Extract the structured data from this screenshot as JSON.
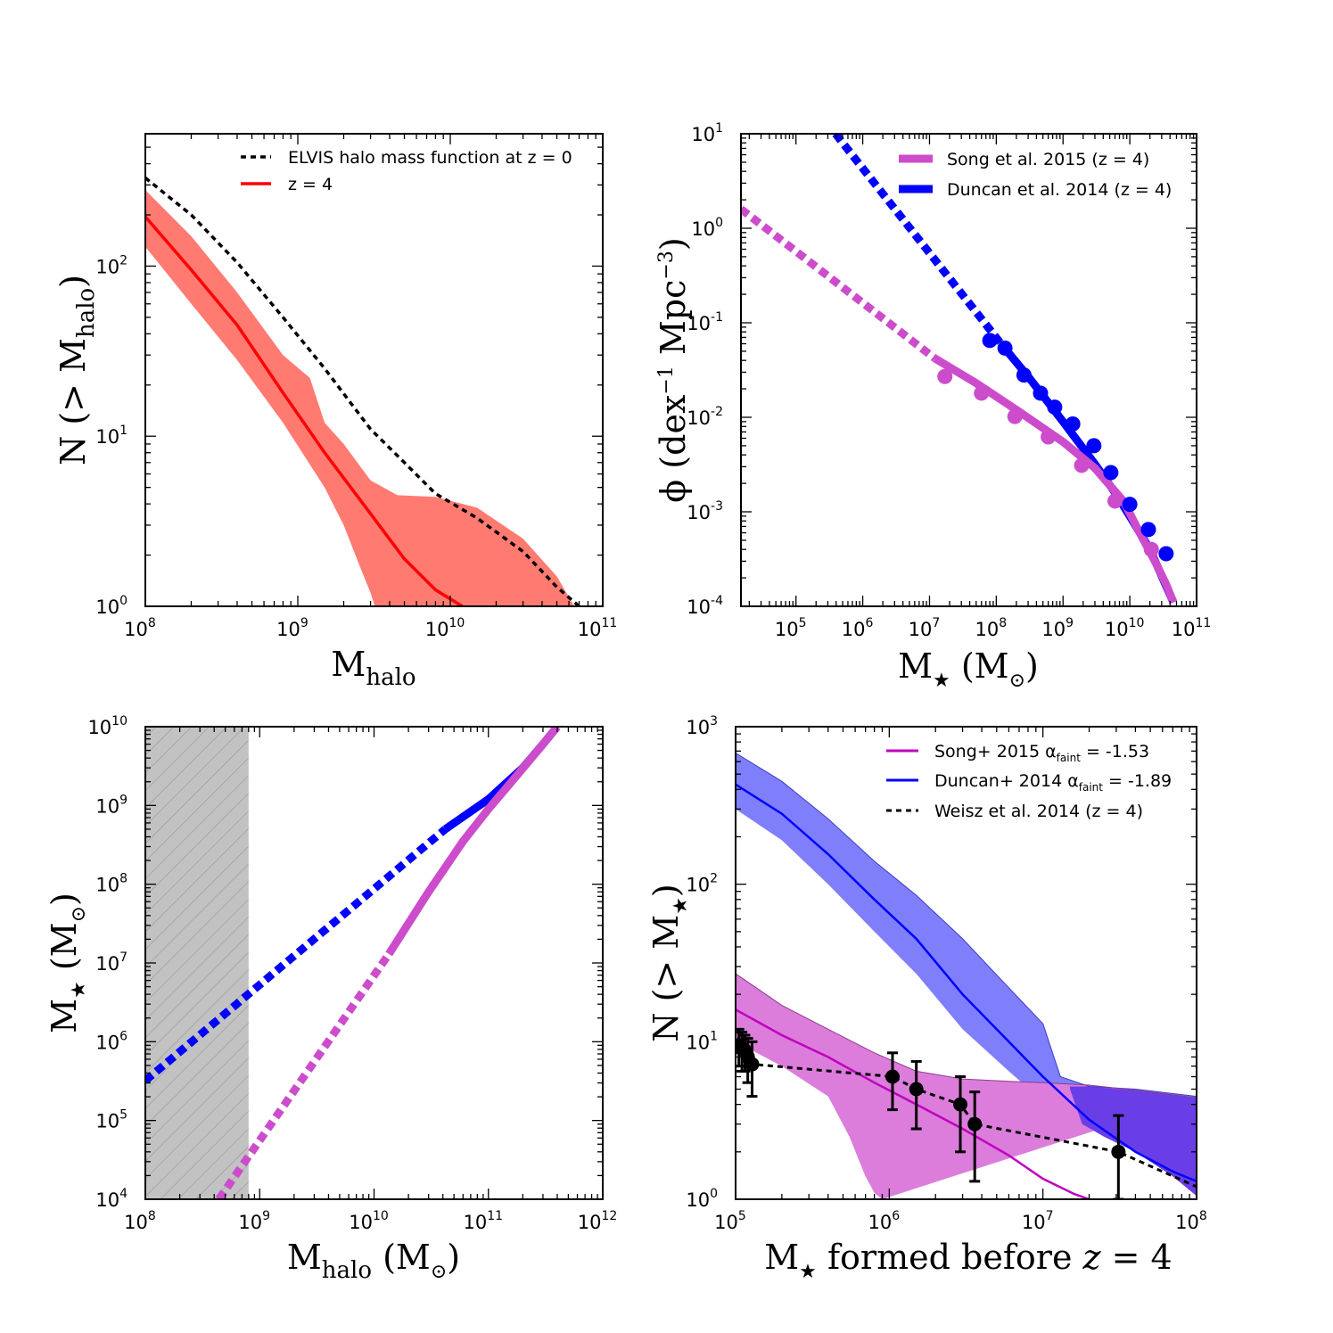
{
  "colors": {
    "red_line": "#ff0000",
    "red_fill": "#ff7b72",
    "magenta_line": "#bf00bf",
    "magenta_thick": "#cc4ccc",
    "magenta_fill": "#dc7ddc",
    "blue_line": "#0000ff",
    "blue_fill": "#7f7ffb",
    "overlap_fill": "#6a3ee6",
    "hatch_fill": "#c2c2c2",
    "black": "#000000"
  },
  "chart_data": [
    {
      "id": "a",
      "type": "line",
      "xscale": "log",
      "yscale": "log",
      "xlim": [
        100000000.0,
        100000000000.0
      ],
      "ylim": [
        1,
        600
      ],
      "xlabel": "M",
      "xlabel_sub": "halo",
      "ylabel": "N (> M",
      "ylabel_sub": "halo",
      "ylabel_close": ")",
      "xticks": [
        {
          "label": "10",
          "sup": "8"
        },
        {
          "label": "10",
          "sup": "9"
        },
        {
          "label": "10",
          "sup": "10"
        },
        {
          "label": "10",
          "sup": "11"
        }
      ],
      "yticks": [
        {
          "label": "10",
          "sup": "0"
        },
        {
          "label": "10",
          "sup": "1"
        },
        {
          "label": "10",
          "sup": "2"
        }
      ],
      "legend": [
        {
          "label": "ELVIS halo mass function at z = 0",
          "style": "dashed",
          "color": "#000000"
        },
        {
          "label": "z = 4",
          "style": "solid",
          "color": "#ff0000"
        }
      ],
      "series": [
        {
          "name": "ELVIS halo mass function at z = 0",
          "style": "dashed",
          "x": [
            100000000.0,
            200000000.0,
            400000000.0,
            800000000.0,
            1500000000.0,
            3000000000.0,
            5000000000.0,
            8000000000.0,
            15000000000.0,
            30000000000.0,
            50000000000.0,
            70000000000.0
          ],
          "y": [
            330,
            200,
            105,
            50,
            25,
            11,
            7,
            4.6,
            3.3,
            2.1,
            1.3,
            1.0
          ]
        },
        {
          "name": "z = 4",
          "style": "solid",
          "x": [
            100000000.0,
            200000000.0,
            400000000.0,
            800000000.0,
            1500000000.0,
            3000000000.0,
            5000000000.0,
            8000000000.0,
            12000000000.0
          ],
          "y": [
            195,
            95,
            45,
            18,
            8,
            3.5,
            1.9,
            1.25,
            1.0
          ]
        },
        {
          "name": "z = 4 scatter",
          "style": "band",
          "upper_x": [
            100000000.0,
            200000000.0,
            400000000.0,
            800000000.0,
            1200000000.0,
            1500000000.0,
            2000000000.0,
            3000000000.0,
            4500000000.0,
            8000000000.0,
            15000000000.0,
            30000000000.0,
            50000000000.0,
            65000000000.0
          ],
          "upper_y": [
            280,
            150,
            70,
            30,
            22,
            12,
            9,
            5.5,
            4.5,
            4.4,
            3.8,
            2.5,
            1.5,
            1.0
          ],
          "lower_x": [
            100000000.0,
            200000000.0,
            400000000.0,
            800000000.0,
            1500000000.0,
            2000000000.0,
            2500000000.0,
            3000000000.0,
            3200000000.0
          ],
          "lower_y": [
            130,
            60,
            28,
            12,
            5,
            3,
            1.8,
            1.2,
            1.0
          ]
        }
      ]
    },
    {
      "id": "b",
      "type": "line+scatter",
      "xscale": "log",
      "yscale": "log",
      "xlim": [
        15000.0,
        100000000000.0
      ],
      "ylim": [
        0.0001,
        10
      ],
      "xlabel": "M",
      "xlabel_star": "★",
      "xlabel_rest": " (M",
      "xlabel_sun": "⊙",
      "xlabel_close": ")",
      "ylabel": "ϕ (dex",
      "ylabel_sup1": "−1",
      "ylabel_mid": " Mpc",
      "ylabel_sup2": "−3",
      "ylabel_close": ")",
      "xticks": [
        {
          "label": "10",
          "sup": "5"
        },
        {
          "label": "10",
          "sup": "6"
        },
        {
          "label": "10",
          "sup": "7"
        },
        {
          "label": "10",
          "sup": "8"
        },
        {
          "label": "10",
          "sup": "9"
        },
        {
          "label": "10",
          "sup": "10"
        },
        {
          "label": "10",
          "sup": "11"
        }
      ],
      "yticks": [
        {
          "label": "10",
          "sup": "-4"
        },
        {
          "label": "10",
          "sup": "-3"
        },
        {
          "label": "10",
          "sup": "-2"
        },
        {
          "label": "10",
          "sup": "-1"
        },
        {
          "label": "10",
          "sup": "0"
        },
        {
          "label": "10",
          "sup": "1"
        }
      ],
      "legend": [
        {
          "label": "Song et al. 2015 (z = 4)",
          "color": "#cc4ccc"
        },
        {
          "label": "Duncan et al. 2014 (z = 4)",
          "color": "#0000ff"
        }
      ],
      "series": [
        {
          "name": "Song et al. 2015 extrapolation",
          "style": "dotted",
          "x": [
            15000.0,
            12000000.0
          ],
          "y": [
            1.6,
            0.042
          ]
        },
        {
          "name": "Song et al. 2015 fit",
          "style": "solid",
          "x": [
            12000000.0,
            50000000.0,
            200000000.0,
            1000000000.0,
            3000000000.0,
            8000000000.0,
            15000000000.0,
            25000000000.0,
            35000000000.0,
            45000000000.0
          ],
          "y": [
            0.042,
            0.023,
            0.012,
            0.0055,
            0.0029,
            0.0013,
            0.00055,
            0.00028,
            0.00017,
            0.00011
          ]
        },
        {
          "name": "Duncan et al. 2014 extrapolation",
          "style": "dotted",
          "x": [
            390000.0,
            130000000.0
          ],
          "y": [
            10,
            0.055
          ]
        },
        {
          "name": "Duncan et al. 2014 fit",
          "style": "solid",
          "x": [
            130000000.0,
            300000000.0,
            1000000000.0,
            3000000000.0,
            6000000000.0,
            10000000000.0,
            20000000000.0,
            30000000000.0,
            45000000000.0
          ],
          "y": [
            0.055,
            0.027,
            0.009,
            0.0032,
            0.0016,
            0.0009,
            0.0004,
            0.00021,
            0.00011
          ]
        },
        {
          "name": "Song et al. 2015 data",
          "style": "points",
          "x": [
            17000000.0,
            60000000.0,
            190000000.0,
            600000000.0,
            1900000000.0,
            6000000000.0,
            21000000000.0
          ],
          "y": [
            0.027,
            0.018,
            0.0102,
            0.0062,
            0.0031,
            0.0013,
            0.0004
          ]
        },
        {
          "name": "Duncan et al. 2014 data",
          "style": "points",
          "x": [
            80000000.0,
            135000000.0,
            260000000.0,
            460000000.0,
            750000000.0,
            1400000000.0,
            2900000000.0,
            5200000000.0,
            10000000000.0,
            19000000000.0,
            35000000000.0
          ],
          "y": [
            0.065,
            0.054,
            0.028,
            0.018,
            0.0128,
            0.0085,
            0.005,
            0.0026,
            0.0012,
            0.00065,
            0.00036
          ]
        }
      ]
    },
    {
      "id": "c",
      "type": "line",
      "xscale": "log",
      "yscale": "log",
      "xlim": [
        100000000.0,
        1000000000000.0
      ],
      "ylim": [
        10000.0,
        10000000000.0
      ],
      "xlabel": "M",
      "xlabel_sub": "halo",
      "xlabel_rest": " (M",
      "xlabel_sun": "⊙",
      "xlabel_close": ")",
      "ylabel": "M",
      "ylabel_star": "★",
      "ylabel_rest": " (M",
      "ylabel_sun": "⊙",
      "ylabel_close": ")",
      "xticks": [
        {
          "label": "10",
          "sup": "8"
        },
        {
          "label": "10",
          "sup": "9"
        },
        {
          "label": "10",
          "sup": "10"
        },
        {
          "label": "10",
          "sup": "11"
        },
        {
          "label": "10",
          "sup": "12"
        }
      ],
      "yticks": [
        {
          "label": "10",
          "sup": "4"
        },
        {
          "label": "10",
          "sup": "5"
        },
        {
          "label": "10",
          "sup": "6"
        },
        {
          "label": "10",
          "sup": "7"
        },
        {
          "label": "10",
          "sup": "8"
        },
        {
          "label": "10",
          "sup": "9"
        },
        {
          "label": "10",
          "sup": "10"
        }
      ],
      "shaded_region": {
        "x": [
          100000000.0,
          800000000.0
        ],
        "ylim": [
          10000.0,
          10000000000.0
        ],
        "style": "hatched"
      },
      "series": [
        {
          "name": "Duncan et al. 2014 extrapolation",
          "style": "dotted",
          "color": "#0000ff",
          "x": [
            100000000.0,
            42000000000.0
          ],
          "y": [
            320000.0,
            500000000.0
          ]
        },
        {
          "name": "Duncan et al. 2014",
          "style": "solid",
          "color": "#0000ff",
          "x": [
            42000000000.0,
            100000000000.0,
            200000000000.0,
            300000000000.0,
            400000000000.0
          ],
          "y": [
            500000000.0,
            1200000000.0,
            3000000000.0,
            6000000000.0,
            10000000000.0
          ]
        },
        {
          "name": "Song et al. 2015 extrapolation",
          "style": "dotted",
          "color": "#cc4ccc",
          "x": [
            440000000.0,
            13500000000.0
          ],
          "y": [
            10000.0,
            13000000.0
          ]
        },
        {
          "name": "Song et al. 2015",
          "style": "solid",
          "color": "#cc4ccc",
          "x": [
            13500000000.0,
            30000000000.0,
            60000000000.0,
            100000000000.0,
            150000000000.0,
            220000000000.0,
            300000000000.0,
            400000000000.0
          ],
          "y": [
            13000000.0,
            80000000.0,
            350000000.0,
            900000000.0,
            1800000000.0,
            3500000000.0,
            6000000000.0,
            10000000000.0
          ]
        }
      ]
    },
    {
      "id": "d",
      "type": "line+errorbar",
      "xscale": "log",
      "yscale": "log",
      "xlim": [
        100000.0,
        100000000.0
      ],
      "ylim": [
        1,
        1000
      ],
      "xlabel": "M",
      "xlabel_star": "★",
      "xlabel_rest": " formed before ",
      "xlabel_z": "z",
      "xlabel_eq": " = 4",
      "ylabel": "N (> M",
      "ylabel_star": "★",
      "ylabel_close": ")",
      "xticks": [
        {
          "label": "10",
          "sup": "5"
        },
        {
          "label": "10",
          "sup": "6"
        },
        {
          "label": "10",
          "sup": "7"
        },
        {
          "label": "10",
          "sup": "8"
        }
      ],
      "yticks": [
        {
          "label": "10",
          "sup": "0"
        },
        {
          "label": "10",
          "sup": "1"
        },
        {
          "label": "10",
          "sup": "2"
        },
        {
          "label": "10",
          "sup": "3"
        }
      ],
      "legend": [
        {
          "label": "Song+ 2015 α",
          "sub": "faint",
          "value": " = -1.53",
          "color": "#bf00bf",
          "style": "solid"
        },
        {
          "label": "Duncan+ 2014 α",
          "sub": "faint",
          "value": " = -1.89",
          "color": "#0000ff",
          "style": "solid"
        },
        {
          "label": "Weisz et al. 2014 (z = 4)",
          "color": "#000000",
          "style": "dashed"
        }
      ],
      "series": [
        {
          "name": "Duncan+ 2014",
          "style": "solid",
          "color": "#0000ff",
          "x": [
            100000.0,
            200000.0,
            400000.0,
            800000.0,
            1500000.0,
            3000000.0,
            6000000.0,
            10000000.0,
            20000000.0,
            40000000.0,
            70000000.0,
            100000000.0
          ],
          "y": [
            430,
            280,
            155,
            80,
            45,
            20,
            10,
            6,
            3.2,
            2.0,
            1.5,
            1.3
          ]
        },
        {
          "name": "Duncan+ 2014 scatter",
          "style": "band",
          "upper_x": [
            100000.0,
            200000.0,
            400000.0,
            800000.0,
            1500000.0,
            3000000.0,
            6000000.0,
            10000000.0,
            13000000.0,
            20000000.0,
            40000000.0,
            100000000.0
          ],
          "upper_y": [
            680,
            450,
            260,
            140,
            85,
            45,
            22,
            13,
            6.0,
            5.2,
            5.0,
            4.5
          ],
          "lower_x": [
            100000.0,
            200000.0,
            400000.0,
            800000.0,
            1500000.0,
            3000000.0,
            6000000.0,
            10000000.0,
            15000000.0,
            18000000.0,
            25000000.0,
            40000000.0,
            70000000.0,
            100000000.0
          ],
          "lower_y": [
            300,
            190,
            100,
            50,
            27,
            12,
            6.5,
            4.2,
            5.0,
            3.0,
            2.5,
            2.0,
            1.4,
            1.05
          ]
        },
        {
          "name": "Song+ 2015",
          "style": "solid",
          "color": "#bf00bf",
          "x": [
            100000.0,
            200000.0,
            400000.0,
            800000.0,
            1500000.0,
            3000000.0,
            6000000.0,
            10000000.0,
            16000000.0,
            20000000.0
          ],
          "y": [
            16,
            11,
            8,
            5.5,
            4,
            2.8,
            1.9,
            1.35,
            1.08,
            1.0
          ]
        },
        {
          "name": "Song+ 2015 scatter",
          "style": "band",
          "upper_x": [
            100000.0,
            200000.0,
            400000.0,
            800000.0,
            1500000.0,
            3000000.0,
            6000000.0,
            10000000.0,
            20000000.0,
            50000000.0,
            100000000.0
          ],
          "upper_y": [
            27,
            17,
            12,
            8.5,
            6.5,
            5.8,
            5.6,
            5.5,
            5.3,
            4.8,
            4.4
          ],
          "lower_x": [
            100000.0,
            200000.0,
            400000.0,
            550000.0,
            700000.0,
            800000.0,
            900000.0
          ],
          "lower_y": [
            10,
            7,
            4.5,
            2.5,
            1.4,
            1.1,
            1.0
          ]
        },
        {
          "name": "Weisz et al. 2014 (z = 4)",
          "style": "dashed",
          "color": "#000000",
          "x": [
            105000.0,
            110000.0,
            115000.0,
            120000.0,
            128000.0,
            1050000.0,
            1500000.0,
            2900000.0,
            3600000.0,
            31000000.0,
            100000000.0
          ],
          "y": [
            9.5,
            9.0,
            8.8,
            8.0,
            7.2,
            6.0,
            5.0,
            4.0,
            3.0,
            2.0,
            1.2
          ],
          "points_x": [
            105000.0,
            110000.0,
            115000.0,
            120000.0,
            128000.0,
            1050000.0,
            1500000.0,
            2900000.0,
            3600000.0,
            31000000.0
          ],
          "points_y": [
            9.5,
            9.0,
            8.8,
            8.0,
            7.2,
            6.0,
            5.0,
            4.0,
            3.0,
            2.0
          ],
          "err_low": [
            7.0,
            6.5,
            6.5,
            5.5,
            4.5,
            3.7,
            2.8,
            2.0,
            1.3,
            1.0
          ],
          "err_high": [
            12.0,
            11.5,
            11.0,
            10.5,
            10.0,
            8.5,
            7.5,
            6.0,
            4.8,
            3.4
          ]
        }
      ]
    }
  ]
}
